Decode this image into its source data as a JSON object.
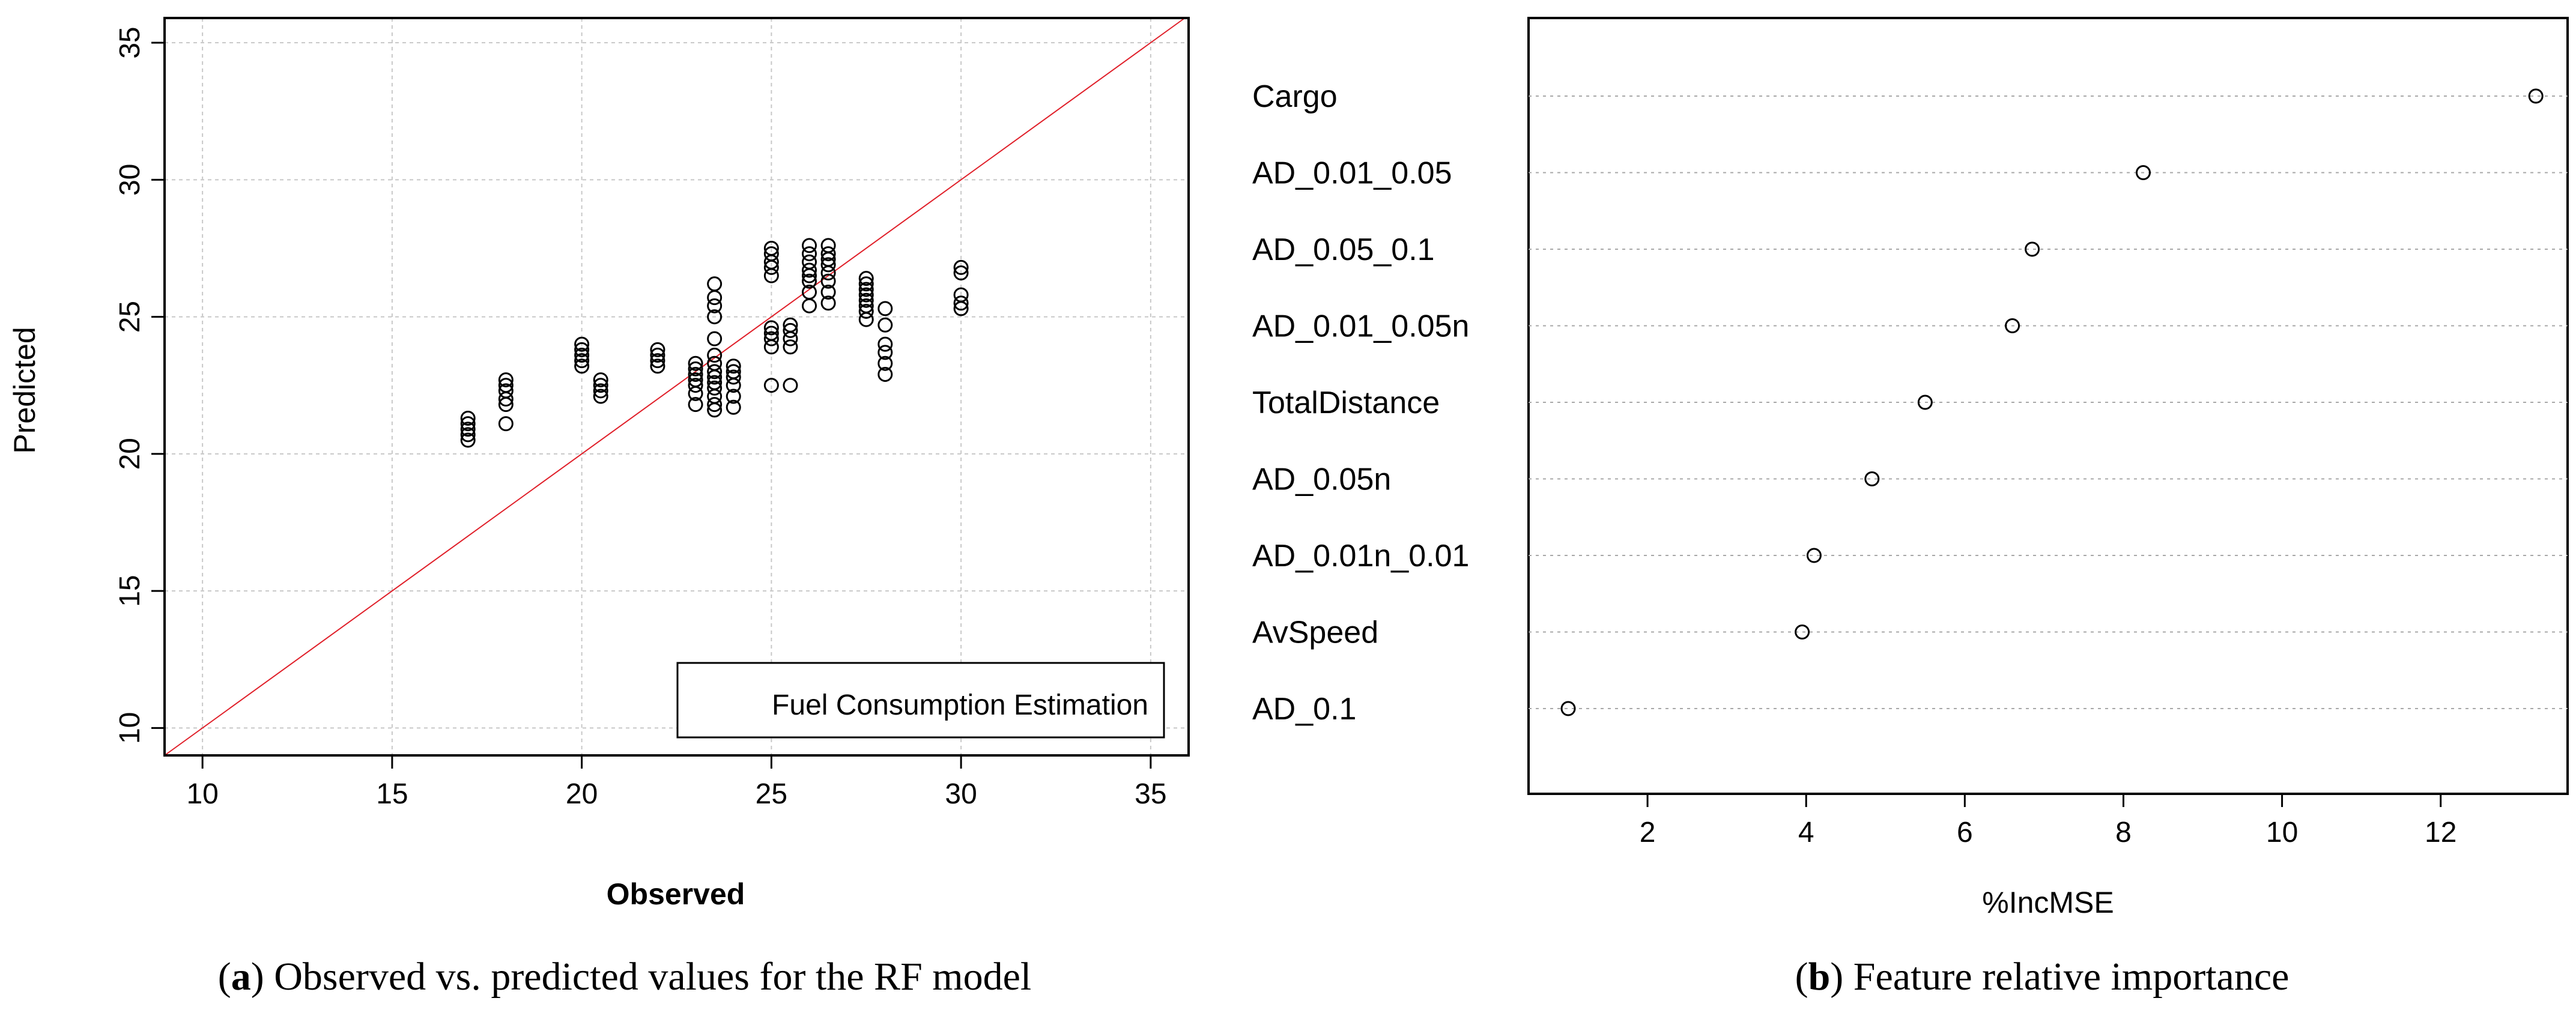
{
  "chart_data": [
    {
      "id": "a",
      "type": "scatter",
      "title": "",
      "xlabel": "Observed",
      "ylabel": "Predicted",
      "xlim": [
        9,
        36
      ],
      "ylim": [
        9,
        35.9
      ],
      "xticks": [
        10,
        15,
        20,
        25,
        30,
        35
      ],
      "yticks": [
        10,
        15,
        20,
        25,
        30,
        35
      ],
      "grid": true,
      "legend_text": "Fuel Consumption Estimation",
      "legend_position": "bottom-right",
      "reference_line": {
        "label": "y = x",
        "color": "#e0202a"
      },
      "caption": {
        "letter": "a",
        "text": "Observed vs. predicted values for the RF model"
      },
      "series": [
        {
          "name": "observations",
          "points": [
            [
              17,
              20.5
            ],
            [
              17,
              20.7
            ],
            [
              17,
              20.9
            ],
            [
              17,
              21.1
            ],
            [
              17,
              21.3
            ],
            [
              18,
              21.1
            ],
            [
              18,
              21.8
            ],
            [
              18,
              22.0
            ],
            [
              18,
              22.3
            ],
            [
              18,
              22.5
            ],
            [
              18,
              22.7
            ],
            [
              20,
              23.2
            ],
            [
              20,
              23.4
            ],
            [
              20,
              23.6
            ],
            [
              20,
              23.8
            ],
            [
              20,
              24.0
            ],
            [
              20.5,
              22.1
            ],
            [
              20.5,
              22.3
            ],
            [
              20.5,
              22.5
            ],
            [
              20.5,
              22.7
            ],
            [
              22,
              23.2
            ],
            [
              22,
              23.4
            ],
            [
              22,
              23.6
            ],
            [
              22,
              23.8
            ],
            [
              23,
              21.8
            ],
            [
              23,
              22.2
            ],
            [
              23,
              22.5
            ],
            [
              23,
              22.7
            ],
            [
              23,
              22.9
            ],
            [
              23,
              23.1
            ],
            [
              23,
              23.3
            ],
            [
              23.5,
              21.6
            ],
            [
              23.5,
              21.8
            ],
            [
              23.5,
              22.1
            ],
            [
              23.5,
              22.4
            ],
            [
              23.5,
              22.6
            ],
            [
              23.5,
              22.8
            ],
            [
              23.5,
              23.0
            ],
            [
              23.5,
              23.3
            ],
            [
              23.5,
              23.6
            ],
            [
              23.5,
              24.2
            ],
            [
              23.5,
              25.0
            ],
            [
              23.5,
              25.4
            ],
            [
              23.5,
              25.7
            ],
            [
              23.5,
              26.2
            ],
            [
              24,
              21.7
            ],
            [
              24,
              22.1
            ],
            [
              24,
              22.5
            ],
            [
              24,
              22.8
            ],
            [
              24,
              23.0
            ],
            [
              24,
              23.2
            ],
            [
              25,
              22.5
            ],
            [
              25,
              23.9
            ],
            [
              25,
              24.2
            ],
            [
              25,
              24.4
            ],
            [
              25,
              24.6
            ],
            [
              25,
              26.5
            ],
            [
              25,
              26.8
            ],
            [
              25,
              27.0
            ],
            [
              25,
              27.3
            ],
            [
              25,
              27.5
            ],
            [
              25.5,
              22.5
            ],
            [
              25.5,
              23.9
            ],
            [
              25.5,
              24.2
            ],
            [
              25.5,
              24.5
            ],
            [
              25.5,
              24.7
            ],
            [
              26,
              25.4
            ],
            [
              26,
              25.9
            ],
            [
              26,
              26.3
            ],
            [
              26,
              26.5
            ],
            [
              26,
              26.7
            ],
            [
              26,
              27.0
            ],
            [
              26,
              27.3
            ],
            [
              26,
              27.6
            ],
            [
              26.5,
              25.5
            ],
            [
              26.5,
              25.9
            ],
            [
              26.5,
              26.3
            ],
            [
              26.5,
              26.6
            ],
            [
              26.5,
              26.9
            ],
            [
              26.5,
              27.1
            ],
            [
              26.5,
              27.3
            ],
            [
              26.5,
              27.6
            ],
            [
              27.5,
              24.9
            ],
            [
              27.5,
              25.2
            ],
            [
              27.5,
              25.4
            ],
            [
              27.5,
              25.6
            ],
            [
              27.5,
              25.8
            ],
            [
              27.5,
              26.0
            ],
            [
              27.5,
              26.2
            ],
            [
              27.5,
              26.4
            ],
            [
              28,
              22.9
            ],
            [
              28,
              23.3
            ],
            [
              28,
              23.7
            ],
            [
              28,
              24.0
            ],
            [
              28,
              24.7
            ],
            [
              28,
              25.3
            ],
            [
              30,
              25.3
            ],
            [
              30,
              25.5
            ],
            [
              30,
              25.8
            ],
            [
              30,
              26.6
            ],
            [
              30,
              26.8
            ]
          ]
        }
      ]
    },
    {
      "id": "b",
      "type": "dotplot",
      "title": "",
      "xlabel": "%IncMSE",
      "xlim": [
        0.5,
        13.6
      ],
      "xticks": [
        2,
        4,
        6,
        8,
        10,
        12
      ],
      "grid": "horizontal-dotted",
      "caption": {
        "letter": "b",
        "text": "Feature relative importance"
      },
      "categories": [
        "Cargo",
        "AD_0.01_0.05",
        "AD_0.05_0.1",
        "AD_0.01_0.05n",
        "TotalDistance",
        "AD_0.05n",
        "AD_0.01n_0.01",
        "AvSpeed",
        "AD_0.1"
      ],
      "values": [
        13.2,
        8.25,
        6.85,
        6.6,
        5.5,
        4.83,
        4.1,
        3.95,
        1.0
      ]
    }
  ]
}
